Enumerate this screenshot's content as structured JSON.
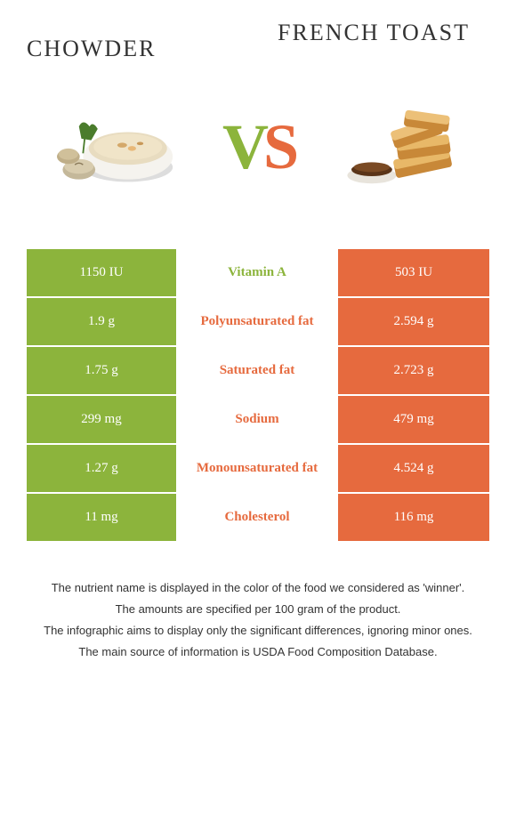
{
  "colors": {
    "left": "#8cb43c",
    "right": "#e66a3e",
    "nutrient_bg": "#ffffff"
  },
  "foods": {
    "left": "Chowder",
    "right": "French toast"
  },
  "vs": {
    "v": "V",
    "s": "S"
  },
  "rows": [
    {
      "left": "1150 IU",
      "label": "Vitamin A",
      "right": "503 IU",
      "winner": "left"
    },
    {
      "left": "1.9 g",
      "label": "Polyunsaturated fat",
      "right": "2.594 g",
      "winner": "right"
    },
    {
      "left": "1.75 g",
      "label": "Saturated fat",
      "right": "2.723 g",
      "winner": "right"
    },
    {
      "left": "299 mg",
      "label": "Sodium",
      "right": "479 mg",
      "winner": "right"
    },
    {
      "left": "1.27 g",
      "label": "Monounsaturated fat",
      "right": "4.524 g",
      "winner": "right"
    },
    {
      "left": "11 mg",
      "label": "Cholesterol",
      "right": "116 mg",
      "winner": "right"
    }
  ],
  "footnotes": [
    "The nutrient name is displayed in the color of the food we considered as 'winner'.",
    "The amounts are specified per 100 gram of the product.",
    "The infographic aims to display only the significant differences, ignoring minor ones.",
    "The main source of information is USDA Food Composition Database."
  ]
}
